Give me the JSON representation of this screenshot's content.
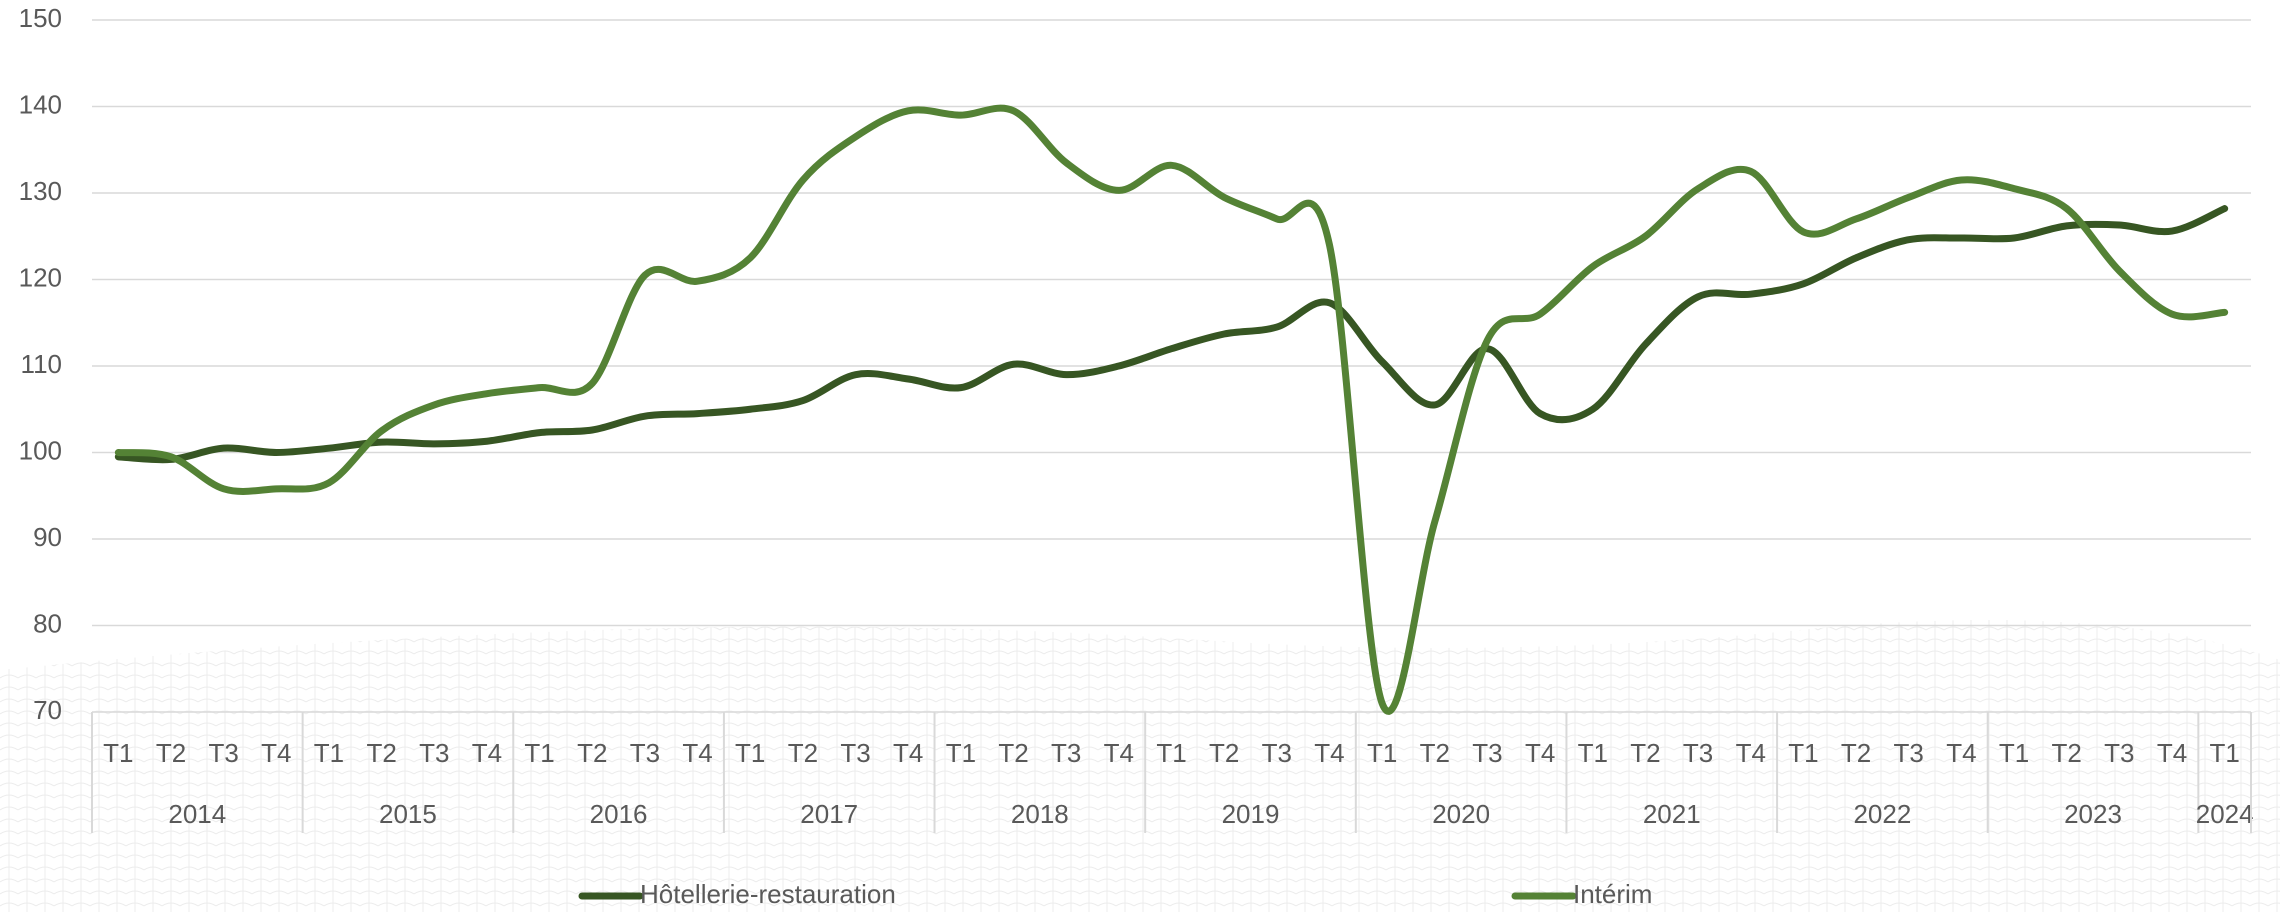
{
  "chart_data": {
    "type": "line",
    "categories": [
      "T1",
      "T2",
      "T3",
      "T4",
      "T1",
      "T2",
      "T3",
      "T4",
      "T1",
      "T2",
      "T3",
      "T4",
      "T1",
      "T2",
      "T3",
      "T4",
      "T1",
      "T2",
      "T3",
      "T4",
      "T1",
      "T2",
      "T3",
      "T4",
      "T1",
      "T2",
      "T3",
      "T4",
      "T1",
      "T2",
      "T3",
      "T4",
      "T1",
      "T2",
      "T3",
      "T4",
      "T1",
      "T2",
      "T3",
      "T4",
      "T1"
    ],
    "category_groups": [
      {
        "label": "2014",
        "count": 4
      },
      {
        "label": "2015",
        "count": 4
      },
      {
        "label": "2016",
        "count": 4
      },
      {
        "label": "2017",
        "count": 4
      },
      {
        "label": "2018",
        "count": 4
      },
      {
        "label": "2019",
        "count": 4
      },
      {
        "label": "2020",
        "count": 4
      },
      {
        "label": "2021",
        "count": 4
      },
      {
        "label": "2022",
        "count": 4
      },
      {
        "label": "2023",
        "count": 4
      },
      {
        "label": "2024",
        "count": 1
      }
    ],
    "series": [
      {
        "name": "Hôtellerie-restauration",
        "color": "#375623",
        "values": [
          99.5,
          99.2,
          100.5,
          100,
          100.5,
          101.2,
          101,
          101.3,
          102.3,
          102.6,
          104.2,
          104.5,
          105,
          106,
          109,
          108.5,
          107.5,
          110.2,
          109,
          110,
          112,
          113.7,
          114.5,
          117.3,
          110.5,
          105.5,
          112,
          104.5,
          105,
          112.5,
          118,
          118.3,
          119.5,
          122.5,
          124.6,
          124.8,
          124.8,
          126.2,
          126.3,
          125.6,
          128.2
        ]
      },
      {
        "name": "Intérim",
        "color": "#548235",
        "values": [
          100,
          99.5,
          95.8,
          95.8,
          96.5,
          102.5,
          105.5,
          106.8,
          107.5,
          108,
          120.5,
          119.8,
          122.5,
          131.5,
          136.5,
          139.5,
          139,
          139.5,
          133.5,
          130.3,
          133.2,
          129.5,
          127,
          124,
          71,
          92,
          113,
          116,
          121.5,
          125,
          130.5,
          132.5,
          125.5,
          127,
          129.5,
          131.5,
          130.5,
          128.2,
          121,
          116,
          116.2
        ]
      }
    ],
    "ylim": [
      70,
      150
    ],
    "yticks": [
      70,
      80,
      90,
      100,
      110,
      120,
      130,
      140,
      150
    ],
    "grid": true,
    "legend": "bottom"
  }
}
